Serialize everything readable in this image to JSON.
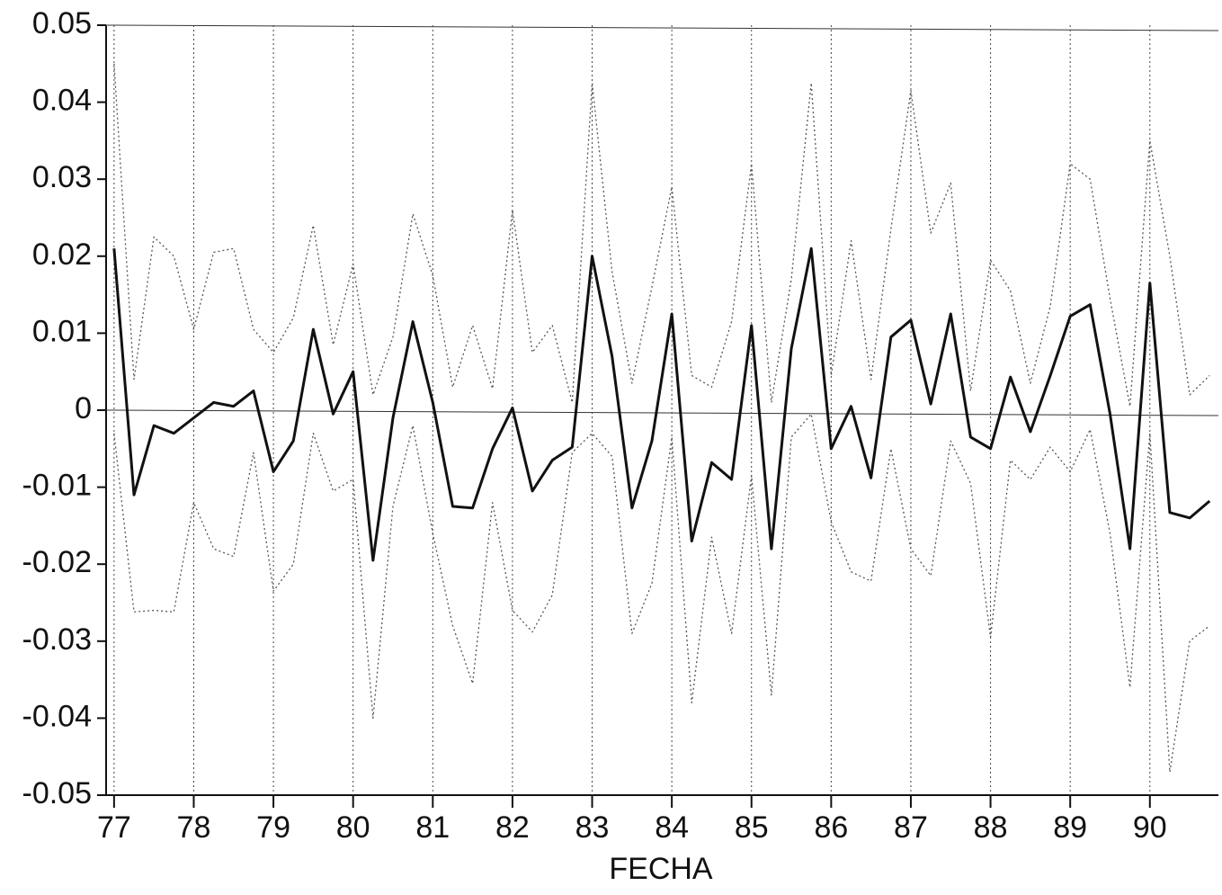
{
  "chart_data": {
    "type": "line",
    "x_label": "FECHA",
    "x": [
      77,
      77.25,
      77.5,
      77.75,
      78,
      78.25,
      78.5,
      78.75,
      79,
      79.25,
      79.5,
      79.75,
      80,
      80.25,
      80.5,
      80.75,
      81,
      81.25,
      81.5,
      81.75,
      82,
      82.25,
      82.5,
      82.75,
      83,
      83.25,
      83.5,
      83.75,
      84,
      84.25,
      84.5,
      84.75,
      85,
      85.25,
      85.5,
      85.75,
      86,
      86.25,
      86.5,
      86.75,
      87,
      87.25,
      87.5,
      87.75,
      88,
      88.25,
      88.5,
      88.75,
      89,
      89.25,
      89.5,
      89.75,
      90,
      90.25,
      90.5,
      90.75
    ],
    "series": [
      {
        "color": "#111111",
        "style": "solid",
        "values": [
          0.021,
          -0.011,
          -0.002,
          -0.003,
          -0.001,
          0.001,
          0.0005,
          0.0025,
          -0.008,
          -0.004,
          0.0105,
          -0.0005,
          0.005,
          -0.0195,
          -0.001,
          0.0115,
          0.001,
          -0.0125,
          -0.0127,
          -0.005,
          0.0003,
          -0.0105,
          -0.0065,
          -0.0048,
          0.02,
          0.007,
          -0.0127,
          -0.004,
          0.0125,
          -0.017,
          -0.0068,
          -0.009,
          0.011,
          -0.018,
          0.008,
          0.021,
          -0.005,
          0.0005,
          -0.0088,
          0.0095,
          0.0117,
          0.0008,
          0.0125,
          -0.0035,
          -0.005,
          0.0043,
          -0.0028,
          0.0045,
          0.0122,
          0.0137,
          -0.0005,
          -0.018,
          0.0165,
          -0.0133,
          -0.014,
          -0.0118
        ]
      },
      {
        "color": "#555555",
        "style": "dotted",
        "values": [
          0.045,
          0.004,
          0.0225,
          0.02,
          0.0105,
          0.0205,
          0.021,
          0.0105,
          0.0075,
          0.012,
          0.024,
          0.0085,
          0.019,
          0.002,
          0.0095,
          0.0255,
          0.0175,
          0.003,
          0.011,
          0.0028,
          0.026,
          0.0075,
          0.011,
          0.001,
          0.0425,
          0.018,
          0.0035,
          0.016,
          0.029,
          0.0045,
          0.003,
          0.0115,
          0.032,
          0.001,
          0.017,
          0.0425,
          0.0045,
          0.022,
          0.004,
          0.0235,
          0.0415,
          0.023,
          0.0295,
          0.0025,
          0.0195,
          0.0155,
          0.0035,
          0.0135,
          0.032,
          0.03,
          0.0145,
          0.0005,
          0.035,
          0.02,
          0.002,
          0.0045
        ]
      },
      {
        "color": "#555555",
        "style": "dotted",
        "values": [
          -0.003,
          -0.0262,
          -0.026,
          -0.0262,
          -0.012,
          -0.018,
          -0.019,
          -0.0055,
          -0.0235,
          -0.02,
          -0.003,
          -0.0105,
          -0.009,
          -0.04,
          -0.0125,
          -0.002,
          -0.016,
          -0.028,
          -0.0355,
          -0.012,
          -0.026,
          -0.0288,
          -0.024,
          -0.0055,
          -0.003,
          -0.006,
          -0.029,
          -0.0225,
          -0.0035,
          -0.038,
          -0.0165,
          -0.029,
          -0.0085,
          -0.037,
          -0.0035,
          -0.0005,
          -0.0145,
          -0.021,
          -0.0222,
          -0.005,
          -0.018,
          -0.0215,
          -0.004,
          -0.0095,
          -0.0295,
          -0.0065,
          -0.009,
          -0.0048,
          -0.008,
          -0.0025,
          -0.016,
          -0.036,
          -0.003,
          -0.047,
          -0.03,
          -0.028
        ]
      }
    ],
    "xlim": [
      76.9,
      90.86
    ],
    "xticks": [
      77,
      78,
      79,
      80,
      81,
      82,
      83,
      84,
      85,
      86,
      87,
      88,
      89,
      90
    ],
    "ylim": [
      -0.05,
      0.05
    ],
    "yticks": [
      0.05,
      0.04,
      0.03,
      0.02,
      0.01,
      0,
      -0.01,
      -0.02,
      -0.03,
      -0.04,
      -0.05
    ],
    "grid": true
  }
}
